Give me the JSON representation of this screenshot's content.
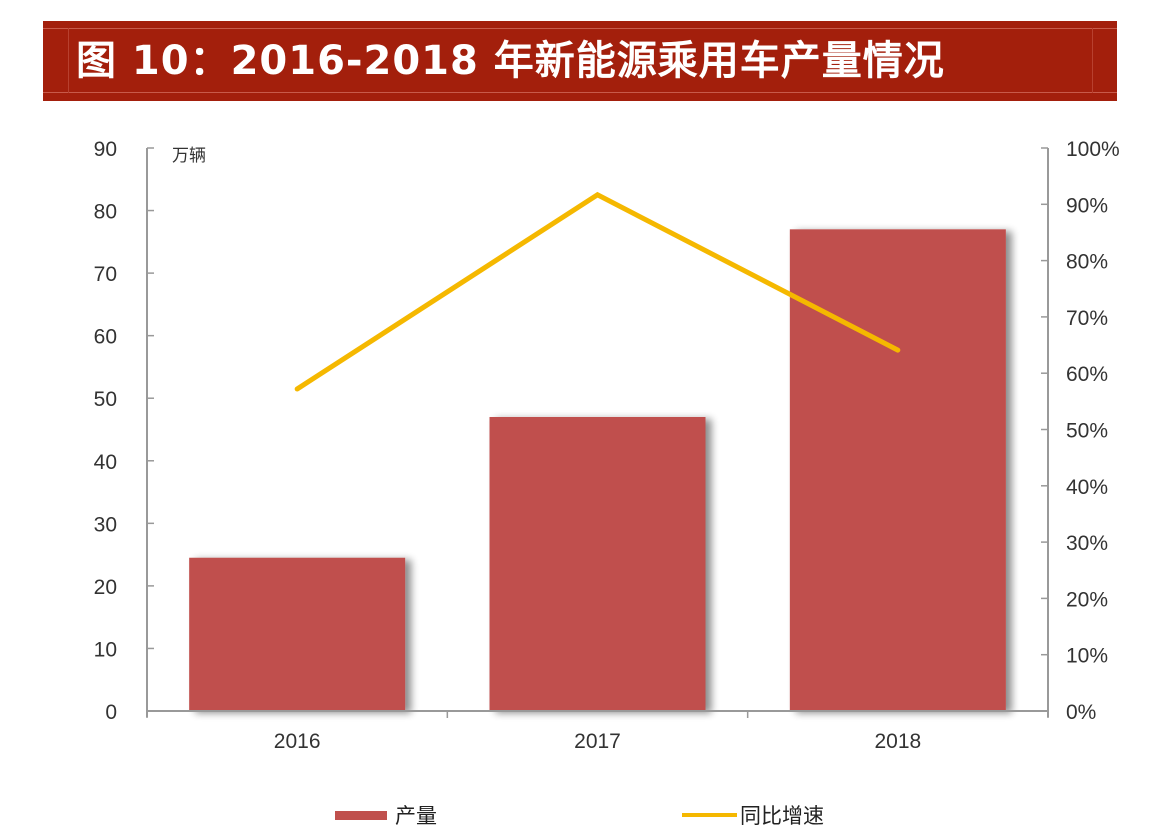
{
  "header": {
    "title": "图 10：2016-2018 年新能源乘用车产量情况"
  },
  "colors": {
    "banner": "#A31F0C",
    "bar": "#C0504D",
    "line": "#F5B800",
    "axis": "#999999",
    "text": "#333333"
  },
  "legend": {
    "items": [
      {
        "label": "产量",
        "type": "bar",
        "color": "#C0504D"
      },
      {
        "label": "同比增速",
        "type": "line",
        "color": "#F5B800"
      }
    ]
  },
  "chart_data": {
    "type": "bar+line",
    "title": "图 10：2016-2018 年新能源乘用车产量情况",
    "categories": [
      "2016",
      "2017",
      "2018"
    ],
    "series": [
      {
        "name": "产量",
        "type": "bar",
        "axis": "left",
        "values": [
          24.5,
          47.0,
          77.0
        ]
      },
      {
        "name": "同比增速",
        "type": "line",
        "axis": "right",
        "values": [
          0.572,
          0.917,
          0.641
        ]
      }
    ],
    "y_left": {
      "label": "万辆",
      "ylim": [
        0,
        90
      ],
      "ticks": [
        "0",
        "10",
        "20",
        "30",
        "40",
        "50",
        "60",
        "70",
        "80",
        "90"
      ]
    },
    "y_right": {
      "label": "",
      "ylim": [
        0,
        1.0
      ],
      "ticks": [
        "0%",
        "10%",
        "20%",
        "30%",
        "40%",
        "50%",
        "60%",
        "70%",
        "80%",
        "90%",
        "100%"
      ]
    },
    "xlabel": "",
    "grid": false,
    "legend_position": "bottom"
  }
}
